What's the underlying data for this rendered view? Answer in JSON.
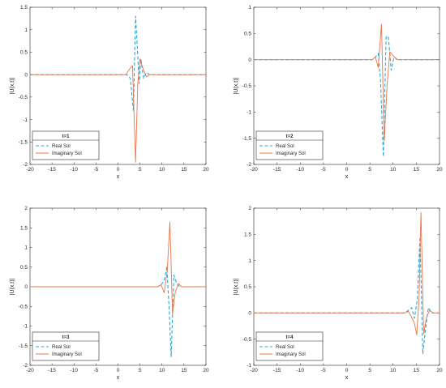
{
  "chart_data": [
    {
      "type": "line",
      "xlabel": "x",
      "ylabel": "|U(x,t)|",
      "xlim": [
        -20,
        20
      ],
      "ylim": [
        -2,
        1.5
      ],
      "xticks": [
        -20,
        -15,
        -10,
        -5,
        0,
        5,
        10,
        15,
        20
      ],
      "yticks": [
        -2,
        -1.5,
        -1,
        -0.5,
        0,
        0.5,
        1,
        1.5
      ],
      "grid": false,
      "legend": {
        "position": "bottom-left",
        "title": "t=1",
        "entries": [
          "Real Sol",
          "Imaginary Sol"
        ]
      },
      "series": [
        {
          "name": "Real Sol",
          "style": "dashed",
          "color": "#2aa7d8",
          "x": [
            -20,
            2,
            2.8,
            3.5,
            4.0,
            4.4,
            4.8,
            5.2,
            5.8,
            6.5,
            7.2,
            8,
            20
          ],
          "y": [
            0,
            0,
            -0.08,
            -0.8,
            1.3,
            0.6,
            -0.2,
            0.35,
            -0.08,
            0.05,
            0.0,
            0.0,
            0
          ]
        },
        {
          "name": "Imaginary Sol",
          "style": "solid",
          "color": "#e8744a",
          "x": [
            -20,
            1.8,
            2.8,
            3.3,
            4.0,
            4.5,
            5.0,
            5.8,
            6.5,
            7.2,
            20
          ],
          "y": [
            0,
            0,
            0.15,
            0.2,
            -1.95,
            -0.2,
            0.35,
            0.1,
            -0.05,
            0.0,
            0
          ]
        }
      ]
    },
    {
      "type": "line",
      "xlabel": "x",
      "ylabel": "|U(x,t)|",
      "xlim": [
        -20,
        20
      ],
      "ylim": [
        -2,
        1
      ],
      "xticks": [
        -20,
        -15,
        -10,
        -5,
        0,
        5,
        10,
        15,
        20
      ],
      "yticks": [
        -2,
        -1.5,
        -1,
        -0.5,
        0,
        0.5,
        1
      ],
      "grid": false,
      "legend": {
        "position": "bottom-left",
        "title": "t=2",
        "entries": [
          "Real Sol",
          "Imaginary Sol"
        ]
      },
      "series": [
        {
          "name": "Real Sol",
          "style": "dashed",
          "color": "#2aa7d8",
          "x": [
            -20,
            5.5,
            6.2,
            6.8,
            7.3,
            7.9,
            8.5,
            9.0,
            9.6,
            10.2,
            11,
            20
          ],
          "y": [
            0,
            0,
            0.05,
            0.12,
            -0.4,
            -1.85,
            0.45,
            0.42,
            -0.2,
            0.05,
            0.0,
            0
          ]
        },
        {
          "name": "Imaginary Sol",
          "style": "solid",
          "color": "#e8744a",
          "x": [
            -20,
            5.5,
            6.2,
            6.8,
            7.5,
            8.1,
            8.7,
            9.3,
            10,
            10.8,
            20
          ],
          "y": [
            0,
            0,
            0.05,
            -0.15,
            0.68,
            -1.55,
            -0.5,
            0.15,
            0.08,
            0.0,
            0
          ]
        }
      ]
    },
    {
      "type": "line",
      "xlabel": "x",
      "ylabel": "|U(x,t)|",
      "xlim": [
        -20,
        20
      ],
      "ylim": [
        -2,
        2
      ],
      "xticks": [
        -20,
        -15,
        -10,
        -5,
        0,
        5,
        10,
        15,
        20
      ],
      "yticks": [
        -2,
        -1.5,
        -1,
        -0.5,
        0,
        0.5,
        1,
        1.5,
        2
      ],
      "grid": false,
      "legend": {
        "position": "bottom-left",
        "title": "t=3",
        "entries": [
          "Real Sol",
          "Imaginary Sol"
        ]
      },
      "series": [
        {
          "name": "Real Sol",
          "style": "dashed",
          "color": "#2aa7d8",
          "x": [
            -20,
            9.0,
            9.8,
            10.5,
            11.1,
            11.6,
            12.1,
            12.7,
            13.3,
            14,
            20
          ],
          "y": [
            0,
            0,
            0.05,
            0.15,
            0.5,
            -0.5,
            -1.78,
            0.3,
            0.1,
            0.0,
            0
          ]
        },
        {
          "name": "Imaginary Sol",
          "style": "solid",
          "color": "#e8744a",
          "x": [
            -20,
            9.0,
            9.8,
            10.5,
            11.2,
            11.8,
            12.4,
            13.0,
            13.7,
            14.5,
            20
          ],
          "y": [
            0,
            0,
            0.05,
            -0.15,
            0.4,
            1.65,
            -0.7,
            -0.15,
            0.08,
            0.0,
            0
          ]
        }
      ]
    },
    {
      "type": "line",
      "xlabel": "x",
      "ylabel": "|U(x,t)|",
      "xlim": [
        -20,
        20
      ],
      "ylim": [
        -1,
        2
      ],
      "xticks": [
        -20,
        -15,
        -10,
        -5,
        0,
        5,
        10,
        15,
        20
      ],
      "yticks": [
        -1,
        -0.5,
        0,
        0.5,
        1,
        1.5,
        2
      ],
      "grid": false,
      "legend": {
        "position": "bottom-left",
        "title": "t=4",
        "entries": [
          "Real Sol",
          "Imaginary Sol"
        ]
      },
      "series": [
        {
          "name": "Real Sol",
          "style": "dashed",
          "color": "#2aa7d8",
          "x": [
            -20,
            12.5,
            13.3,
            14.0,
            14.6,
            15.2,
            15.8,
            16.4,
            17.0,
            17.6,
            18.3,
            20
          ],
          "y": [
            0,
            0,
            0.05,
            0.1,
            -0.1,
            0.25,
            1.45,
            -0.78,
            -0.3,
            0.1,
            0.0,
            0
          ]
        },
        {
          "name": "Imaginary Sol",
          "style": "solid",
          "color": "#e8744a",
          "x": [
            -20,
            12.5,
            13.3,
            14.0,
            14.6,
            15.1,
            15.6,
            16.0,
            16.6,
            17.2,
            17.9,
            18.6,
            20
          ],
          "y": [
            0,
            0,
            0.03,
            -0.08,
            -0.2,
            -0.42,
            0.3,
            1.92,
            -0.4,
            -0.08,
            0.05,
            0.0,
            0
          ]
        }
      ]
    }
  ]
}
